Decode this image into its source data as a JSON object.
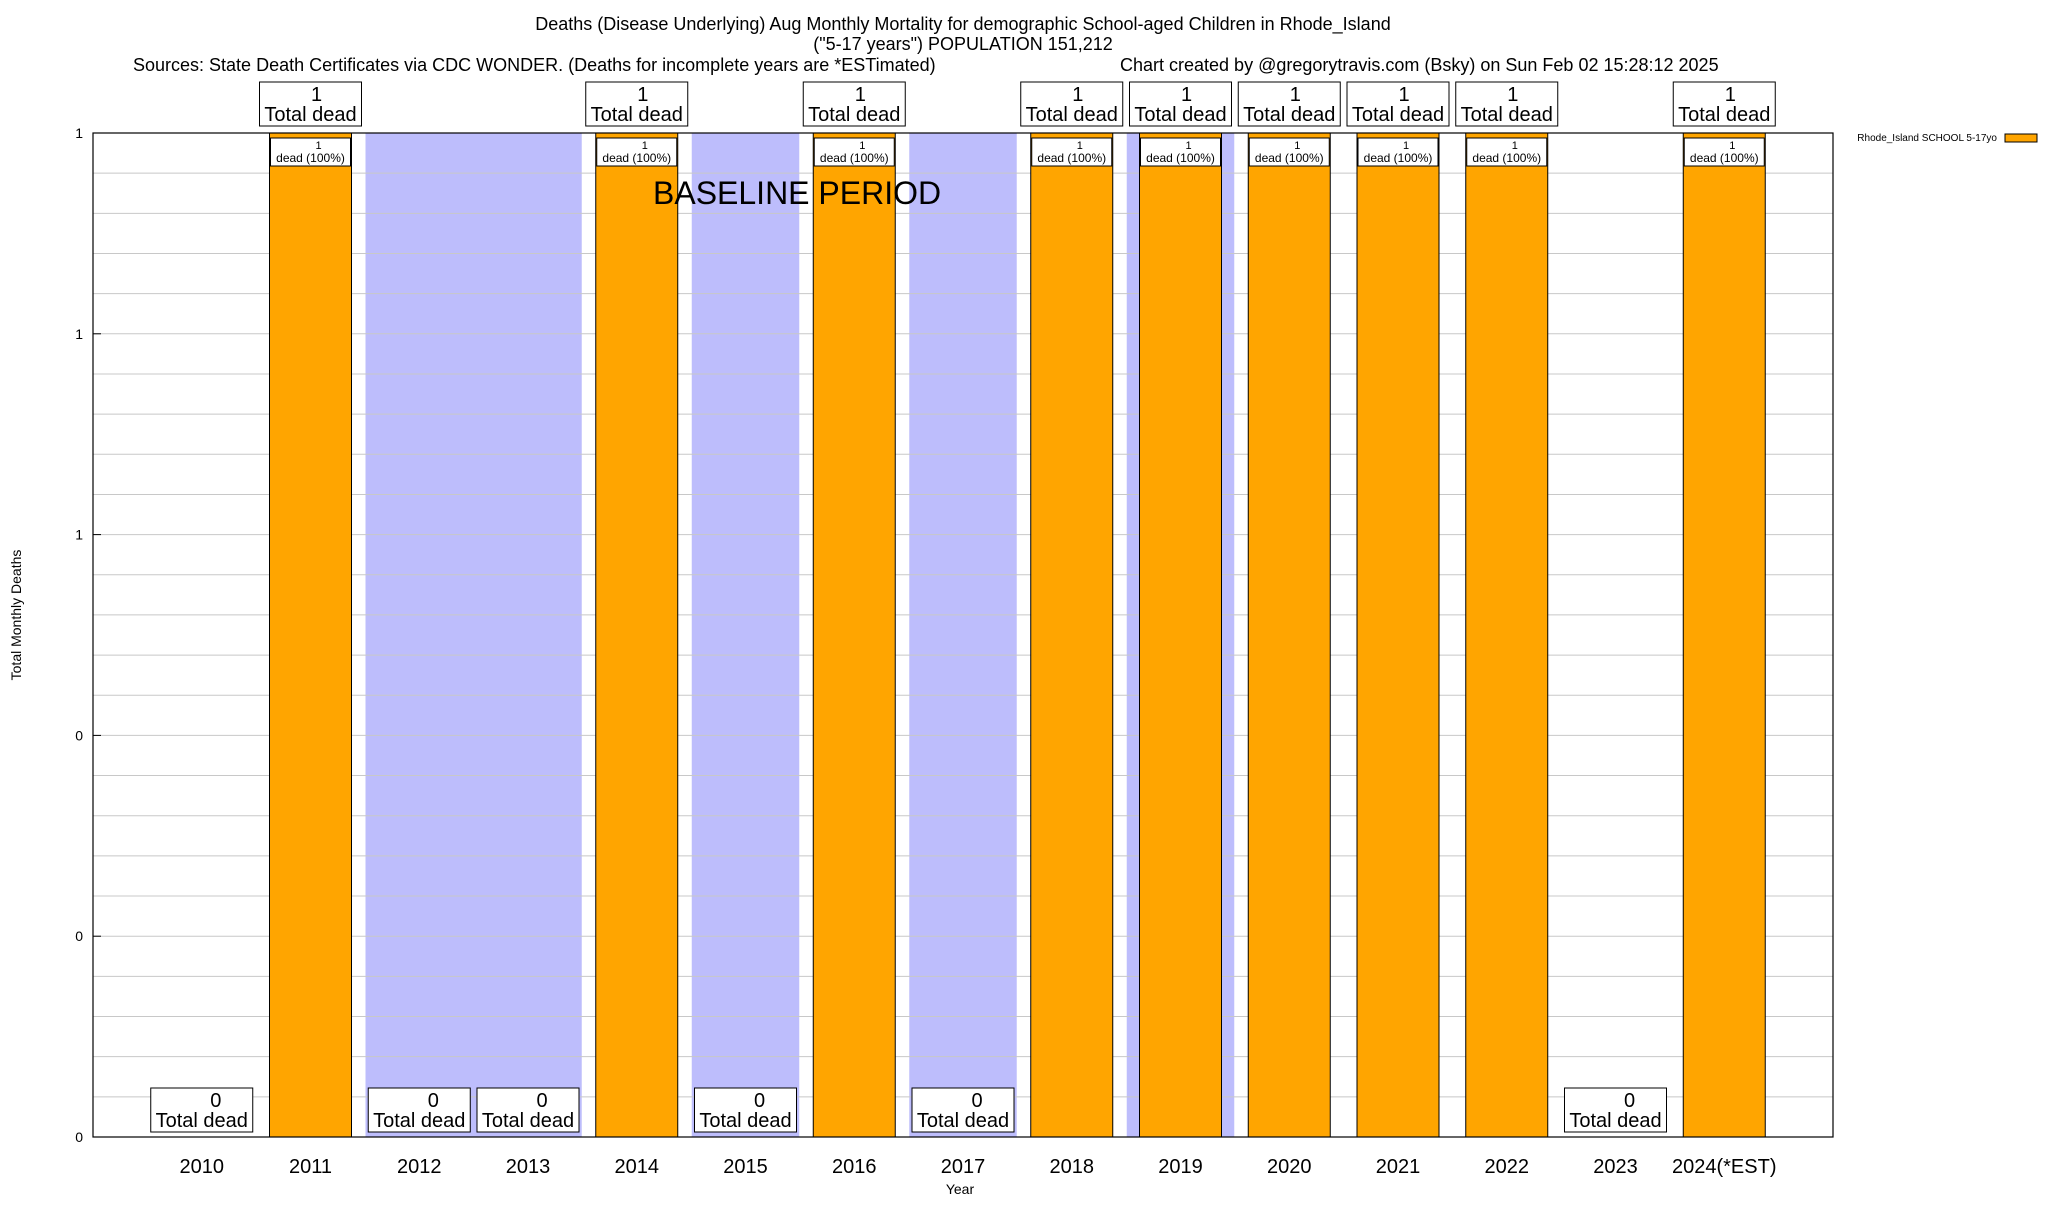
{
  "chart_data": {
    "type": "bar",
    "title_lines": [
      "Deaths (Disease Underlying) Aug Monthly Mortality for demographic School-aged Children in Rhode_Island",
      "(\"5-17 years\") POPULATION 151,212"
    ],
    "sources_text": "Sources: State Death Certificates via CDC WONDER. (Deaths for incomplete years are *ESTimated)",
    "credit_text": "Chart created by @gregorytravis.com (Bsky) on Sun Feb 02 15:28:12 2025",
    "xlabel": "Year",
    "ylabel": "Total Monthly Deaths",
    "ylim": [
      0,
      1
    ],
    "y_tick_values": [
      0,
      0.2,
      0.4,
      0.6,
      0.8,
      1
    ],
    "y_tick_labels": [
      "0",
      "0",
      "0",
      "1",
      "1",
      "1"
    ],
    "baseline_label": "BASELINE PERIOD",
    "baseline_spans": [
      [
        "2012",
        "2013"
      ],
      [
        "2015",
        "2015"
      ],
      [
        "2017",
        "2017"
      ],
      [
        "2019",
        "2019"
      ]
    ],
    "legend": {
      "label": "Rhode_Island SCHOOL 5-17yo",
      "color": "#FFA500",
      "position": "top-right"
    },
    "categories": [
      "2010",
      "2011",
      "2012",
      "2013",
      "2014",
      "2015",
      "2016",
      "2017",
      "2018",
      "2019",
      "2020",
      "2021",
      "2022",
      "2023",
      "2024(*EST)"
    ],
    "series": [
      {
        "name": "Rhode_Island SCHOOL 5-17yo",
        "color": "#FFA500",
        "values": [
          0,
          1,
          0,
          0,
          1,
          0,
          1,
          0,
          1,
          1,
          1,
          1,
          1,
          0,
          1
        ]
      }
    ],
    "total_labels": [
      "0",
      "1",
      "0",
      "0",
      "1",
      "0",
      "1",
      "0",
      "1",
      "1",
      "1",
      "1",
      "1",
      "0",
      "1"
    ],
    "total_suffix": "Total dead",
    "bar_label_count": "1",
    "bar_label_text": "dead (100%)",
    "baseline_color": "#BDBDFC"
  }
}
